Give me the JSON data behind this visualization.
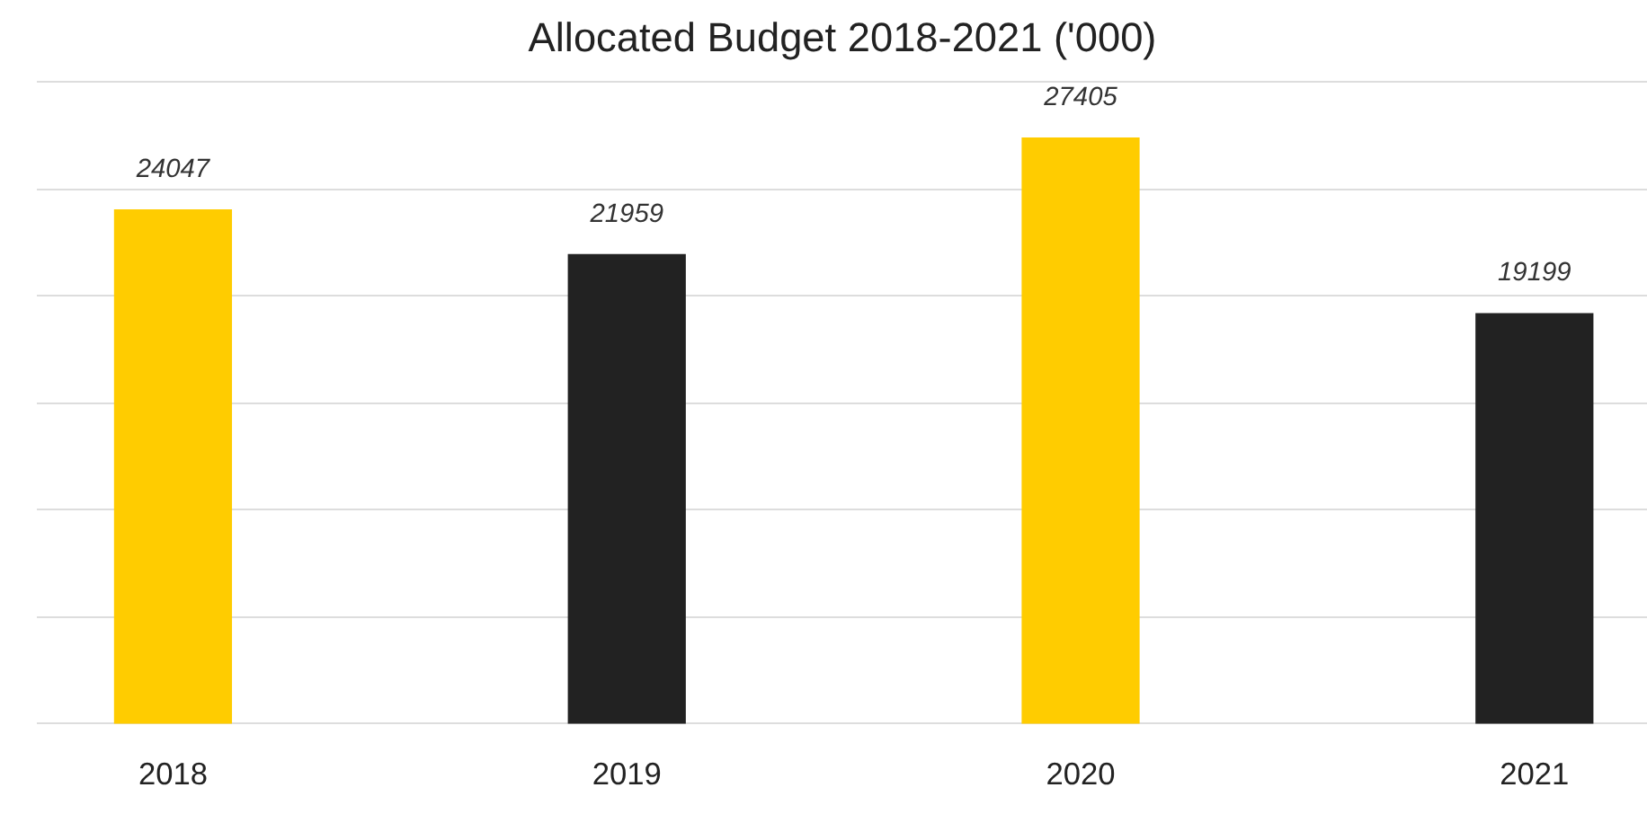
{
  "chart_data": {
    "type": "bar",
    "title": "Allocated Budget 2018-2021 ('000)",
    "categories": [
      "2018",
      "2019",
      "2020",
      "2021"
    ],
    "values": [
      24047,
      21959,
      27405,
      19199
    ],
    "colors": [
      "#ffcc00",
      "#222222",
      "#ffcc00",
      "#222222"
    ],
    "yticks": [
      {
        "value": 0,
        "label": null
      },
      {
        "value": 5000,
        "label": null
      },
      {
        "value": 10000,
        "label": null
      },
      {
        "value": 15000,
        "label": null
      },
      {
        "value": 20000,
        "label": null
      },
      {
        "value": 25000,
        "label": null
      },
      {
        "value": 30000,
        "label": null
      }
    ],
    "tick_labels": "x",
    "grid": "y",
    "data_labels": true
  }
}
